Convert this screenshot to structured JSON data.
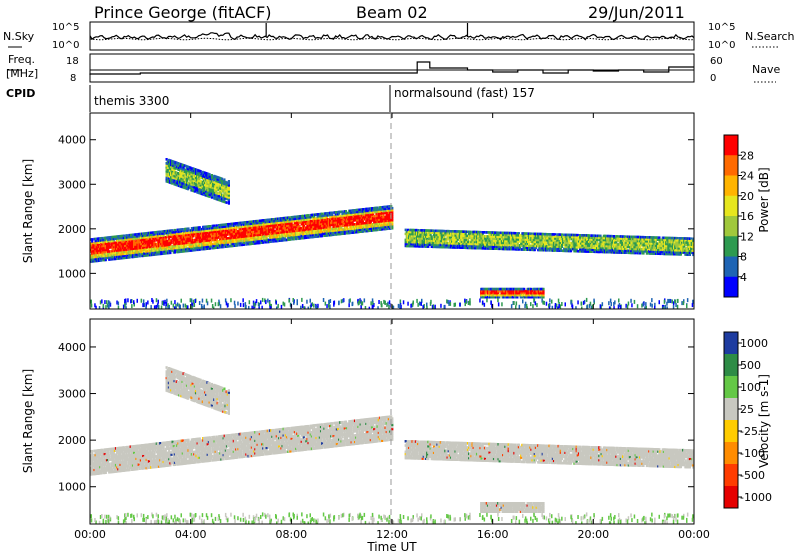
{
  "header": {
    "title": "Prince George (fitACF)",
    "beam": "Beam 02",
    "date": "29/Jun/2011"
  },
  "noise_panel": {
    "left_label": "N.Sky",
    "right_label": "N.Search",
    "yticks": [
      "10^5",
      "10^0"
    ]
  },
  "freq_panel": {
    "left_label_1": "Freq.",
    "left_label_2": "[MHz]",
    "left_ticks": [
      "18",
      "8"
    ],
    "right_label": "Nave",
    "right_ticks": [
      "60",
      "0"
    ]
  },
  "cpid": {
    "label": "CPID",
    "modes": [
      {
        "name": "themis 3300",
        "start": "00:00"
      },
      {
        "name": "normalsound (fast) 157",
        "start": "12:00"
      }
    ]
  },
  "power_colorbar": {
    "label": "Power [dB]",
    "ticks": [
      "28",
      "24",
      "20",
      "16",
      "12",
      "8",
      "4"
    ],
    "colors": [
      "#ff0000",
      "#ff6a00",
      "#ffb400",
      "#e6e61e",
      "#a0c83c",
      "#2e9a50",
      "#1e64b4",
      "#0000ff"
    ]
  },
  "velocity_colorbar": {
    "label": "Velocity [m s-1]",
    "ticks": [
      "1000",
      "500",
      "100",
      "25",
      "-25",
      "-100",
      "-500",
      "-1000"
    ],
    "colors": [
      "#1e3ca0",
      "#2e8c46",
      "#64c846",
      "#c8c8c0",
      "#ffcc00",
      "#ff8c00",
      "#ff3c00",
      "#e60000"
    ]
  },
  "chart_data": [
    {
      "type": "heatmap",
      "variable": "Power",
      "ylabel": "Slant Range [km]",
      "xlabel": "Time UT",
      "xticks": [
        "00:00",
        "04:00",
        "08:00",
        "12:00",
        "16:00",
        "20:00",
        "00:00"
      ],
      "yticks": [
        1000,
        2000,
        3000,
        4000
      ],
      "ylim": [
        200,
        4600
      ],
      "xlim_hours": [
        0,
        24
      ],
      "bands": [
        {
          "t": [
            0,
            12
          ],
          "r_start": 1500,
          "r_end": 2250,
          "width": 500,
          "level": "high"
        },
        {
          "t": [
            3,
            5.5
          ],
          "r_start": 3300,
          "r_end": 2800,
          "width": 500,
          "level": "medium"
        },
        {
          "t": [
            12.5,
            24
          ],
          "r_start": 1800,
          "r_end": 1600,
          "width": 400,
          "level": "medium"
        },
        {
          "t": [
            15.5,
            18
          ],
          "r_start": 550,
          "r_end": 550,
          "width": 200,
          "level": "high"
        }
      ]
    },
    {
      "type": "heatmap",
      "variable": "Velocity",
      "ylabel": "Slant Range [km]",
      "xlabel": "Time UT",
      "xticks": [
        "00:00",
        "04:00",
        "08:00",
        "12:00",
        "16:00",
        "20:00",
        "00:00"
      ],
      "yticks": [
        1000,
        2000,
        3000,
        4000
      ],
      "ylim": [
        200,
        4600
      ],
      "xlim_hours": [
        0,
        24
      ],
      "dominant": "ground scatter (-25 to 25)"
    }
  ]
}
